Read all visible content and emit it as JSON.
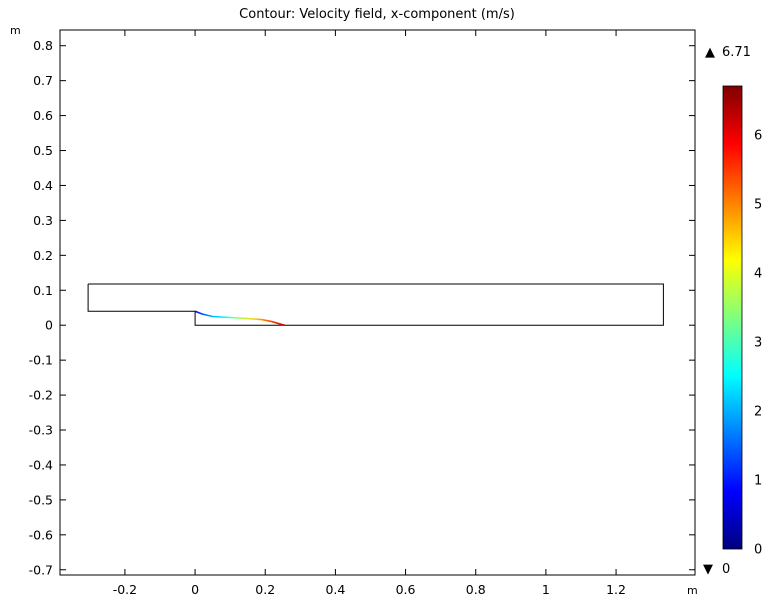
{
  "chart_data": {
    "type": "contour",
    "title": "Contour: Velocity field, x-component (m/s)",
    "x_unit": "m",
    "y_unit": "m",
    "xlim": [
      -0.385,
      1.425
    ],
    "ylim": [
      -0.715,
      0.845
    ],
    "x_ticks": [
      "-0.2",
      "0",
      "0.2",
      "0.4",
      "0.6",
      "0.8",
      "1",
      "1.2"
    ],
    "x_tick_values": [
      -0.2,
      0,
      0.2,
      0.4,
      0.6,
      0.8,
      1,
      1.2
    ],
    "y_ticks": [
      "0.8",
      "0.7",
      "0.6",
      "0.5",
      "0.4",
      "0.3",
      "0.2",
      "0.1",
      "0",
      "-0.1",
      "-0.2",
      "-0.3",
      "-0.4",
      "-0.5",
      "-0.6",
      "-0.7"
    ],
    "y_tick_values": [
      0.8,
      0.7,
      0.6,
      0.5,
      0.4,
      0.3,
      0.2,
      0.1,
      0,
      -0.1,
      -0.2,
      -0.3,
      -0.4,
      -0.5,
      -0.6,
      -0.7
    ],
    "geometry_outline": [
      [
        -0.305,
        0.118
      ],
      [
        1.335,
        0.118
      ],
      [
        1.335,
        0.0
      ],
      [
        0.0,
        0.0
      ],
      [
        0.0,
        0.04
      ],
      [
        -0.305,
        0.04
      ],
      [
        -0.305,
        0.118
      ]
    ],
    "contour_line": [
      [
        0.0,
        0.04
      ],
      [
        0.02,
        0.032
      ],
      [
        0.05,
        0.025
      ],
      [
        0.1,
        0.022
      ],
      [
        0.15,
        0.019
      ],
      [
        0.19,
        0.016
      ],
      [
        0.22,
        0.01
      ],
      [
        0.24,
        0.004
      ],
      [
        0.255,
        0.0
      ]
    ],
    "colorbar": {
      "max_label": "6.71",
      "min_label": "0",
      "max": 6.71,
      "min": 0,
      "ticks": [
        "6",
        "5",
        "4",
        "3",
        "2",
        "1",
        "0"
      ],
      "tick_values": [
        6,
        5,
        4,
        3,
        2,
        1,
        0
      ],
      "colormap": [
        "#00007f",
        "#0000ff",
        "#007fff",
        "#00ffff",
        "#7fff7f",
        "#ffff00",
        "#ff7f00",
        "#ff0000",
        "#7f0000"
      ],
      "max_marker": "▲",
      "min_marker": "▼"
    },
    "grid": false
  }
}
